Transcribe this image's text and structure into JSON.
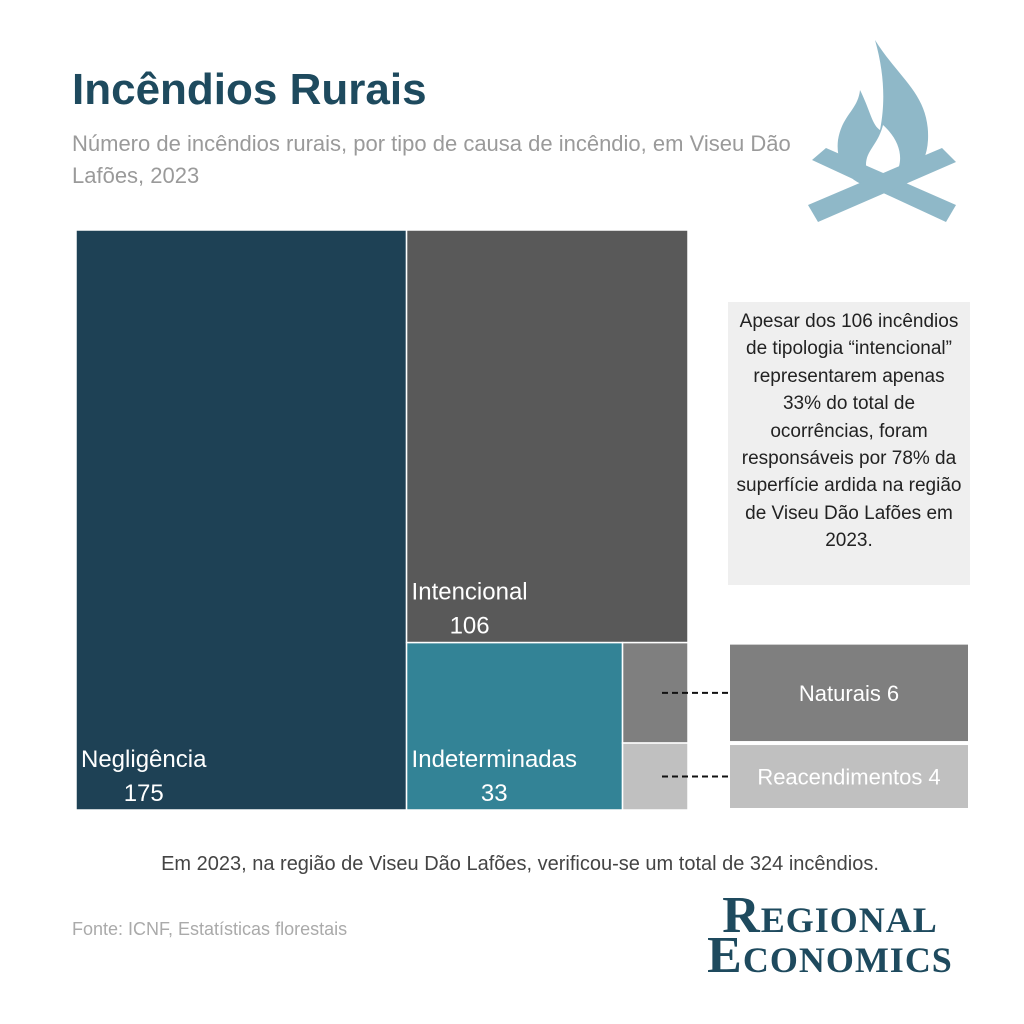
{
  "chart_data": {
    "type": "treemap",
    "title": "Incêndios Rurais",
    "subtitle": "Número de incêndios rurais, por tipo de causa de incêndio, em Viseu Dão Lafões, 2023",
    "categories": [
      "Negligência",
      "Intencional",
      "Indeterminadas",
      "Naturais",
      "Reacendimentos"
    ],
    "values": [
      175,
      106,
      33,
      6,
      4
    ],
    "colors": [
      "#1e4155",
      "#595959",
      "#338396",
      "#7f7f7f",
      "#c0c0c0"
    ],
    "annotation": "Apesar dos 106 incêndios de tipologia “intencional” representarem apenas 33% do total de ocorrências, foram responsáveis por 78% da superfície ardida na região de Viseu Dão Lafões em 2023.",
    "note": "Em 2023, na região de Viseu Dão Lafões, verificou-se um total de 324 incêndios.",
    "source": "Fonte: ICNF, Estatísticas florestais",
    "brand": [
      "Regional",
      "Economics"
    ]
  }
}
